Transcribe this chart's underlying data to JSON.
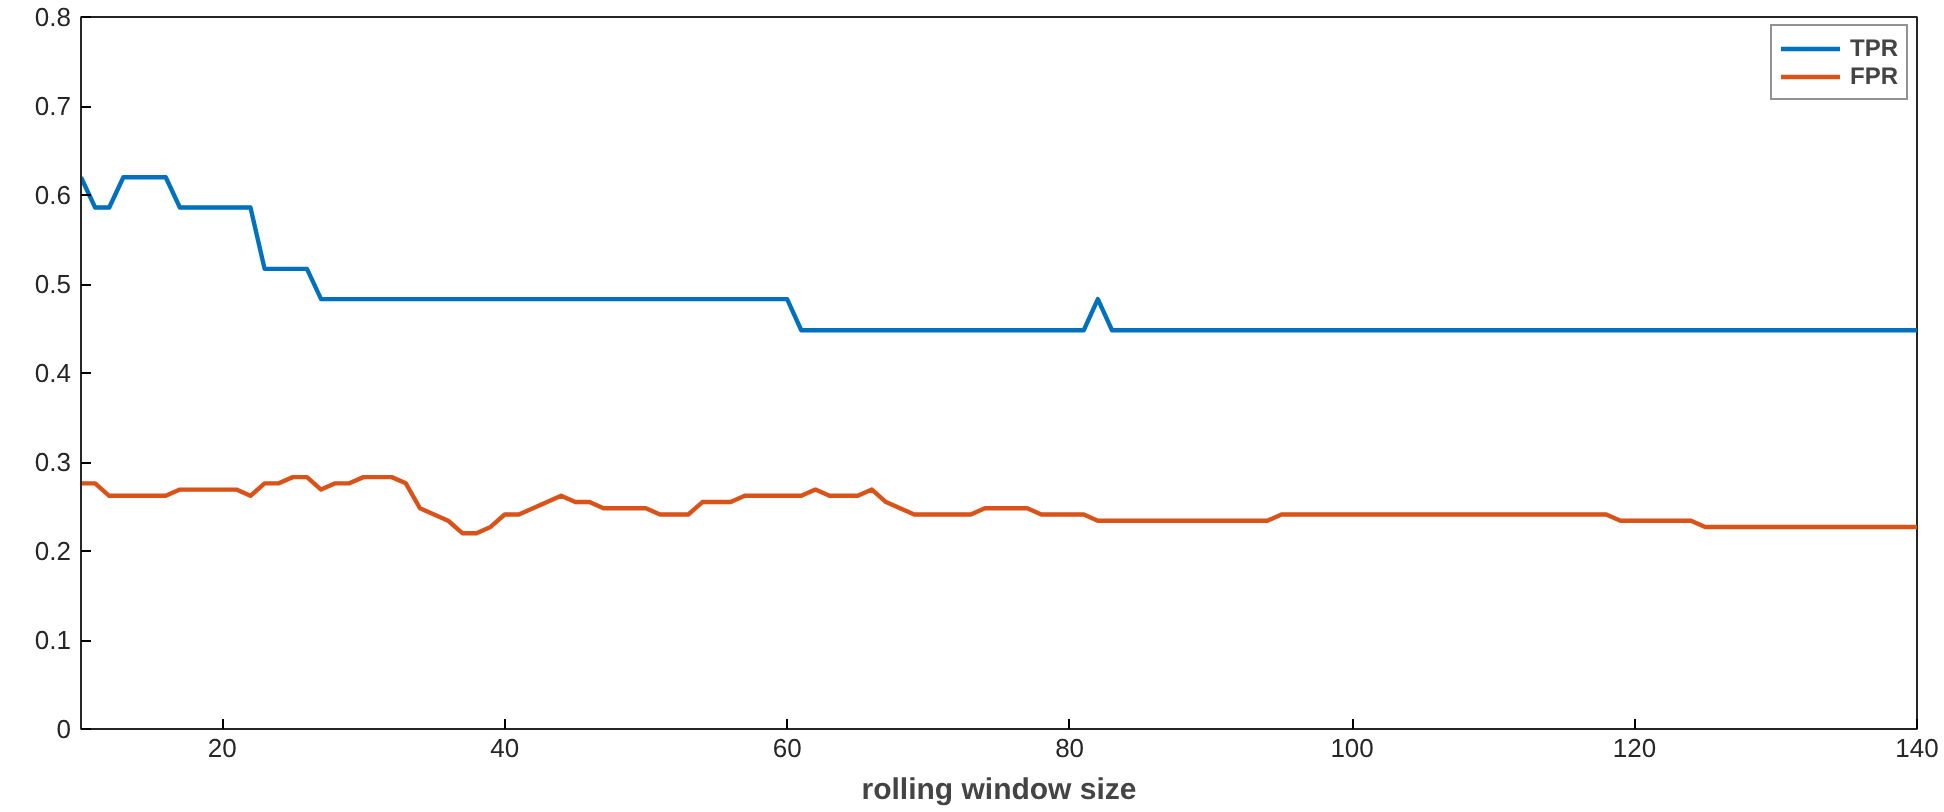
{
  "chart_data": {
    "type": "line",
    "xlabel": "rolling window size",
    "xlim": [
      10,
      140
    ],
    "xticks": [
      20,
      40,
      60,
      80,
      100,
      120,
      140
    ],
    "ylim": [
      0,
      0.8
    ],
    "yticks": [
      0,
      0.1,
      0.2,
      0.3,
      0.4,
      0.5,
      0.6,
      0.7,
      0.8
    ],
    "grid": false,
    "legend": "top right",
    "marker": "none",
    "line_style": "solid",
    "series": [
      {
        "name": "TPR",
        "color": "#0072bd",
        "x": [
          10,
          11,
          12,
          13,
          16,
          17,
          22,
          23,
          26,
          27,
          60,
          61,
          81,
          82,
          83,
          140
        ],
        "values": [
          0.62,
          0.586,
          0.586,
          0.62,
          0.62,
          0.586,
          0.586,
          0.517,
          0.517,
          0.483,
          0.483,
          0.448,
          0.448,
          0.483,
          0.448,
          0.448
        ]
      },
      {
        "name": "FPR",
        "color": "#d95319",
        "x": [
          10,
          11,
          12,
          16,
          17,
          21,
          22,
          23,
          24,
          25,
          26,
          27,
          28,
          29,
          30,
          32,
          33,
          34,
          36,
          37,
          38,
          39,
          40,
          41,
          44,
          45,
          46,
          47,
          50,
          51,
          53,
          54,
          56,
          57,
          61,
          62,
          63,
          65,
          66,
          67,
          69,
          73,
          74,
          77,
          78,
          81,
          82,
          94,
          95,
          118,
          119,
          124,
          125,
          140
        ],
        "values": [
          0.276,
          0.276,
          0.262,
          0.262,
          0.269,
          0.269,
          0.262,
          0.276,
          0.276,
          0.283,
          0.283,
          0.269,
          0.276,
          0.276,
          0.283,
          0.283,
          0.276,
          0.248,
          0.234,
          0.22,
          0.22,
          0.227,
          0.241,
          0.241,
          0.262,
          0.255,
          0.255,
          0.248,
          0.248,
          0.241,
          0.241,
          0.255,
          0.255,
          0.262,
          0.262,
          0.269,
          0.262,
          0.262,
          0.269,
          0.255,
          0.241,
          0.241,
          0.248,
          0.248,
          0.241,
          0.241,
          0.234,
          0.234,
          0.241,
          0.241,
          0.234,
          0.234,
          0.227,
          0.227
        ]
      }
    ]
  }
}
